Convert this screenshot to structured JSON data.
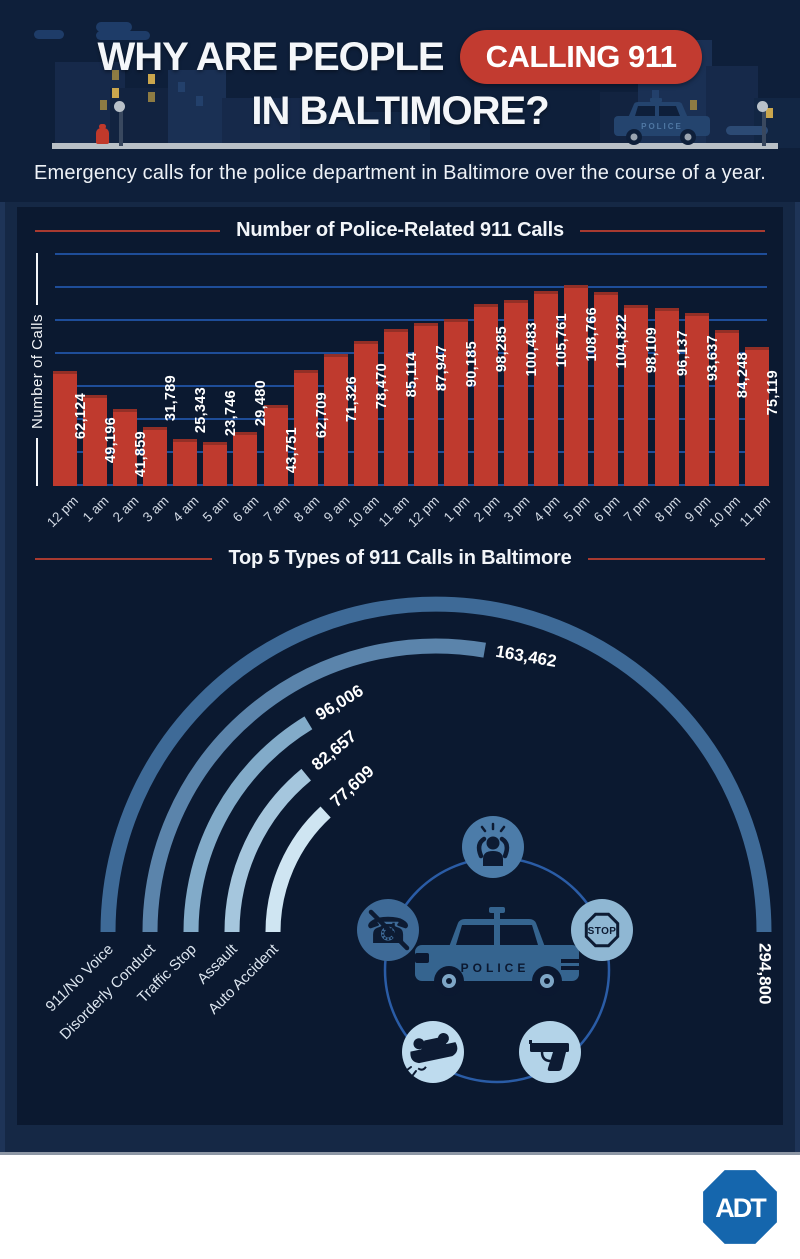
{
  "header": {
    "title_line1": "WHY ARE PEOPLE",
    "badge": "CALLING 911",
    "title_line2": "IN BALTIMORE?",
    "subtitle": "Emergency calls for the police department in Baltimore over the course of a year.",
    "police_car_text": "POLICE"
  },
  "colors": {
    "background_navy": "#0e1f3a",
    "frame_navy": "#152845",
    "panel_navy": "#0b1930",
    "accent_red": "#c23b30",
    "bar_red": "#bf3a2e",
    "gridline_blue": "#1e4d99",
    "title_rule_red": "#a83a30",
    "adt_blue": "#1566ad"
  },
  "chart_data": [
    {
      "type": "bar",
      "title": "Number of Police-Related 911 Calls",
      "ylabel": "Number of Calls",
      "categories": [
        "12 pm",
        "1 am",
        "2 am",
        "3 am",
        "4 am",
        "5 am",
        "6 am",
        "7 am",
        "8 am",
        "9 am",
        "10 am",
        "11 am",
        "12 pm",
        "1 pm",
        "2 pm",
        "3 pm",
        "4 pm",
        "5 pm",
        "6 pm",
        "7 pm",
        "8 pm",
        "9 pm",
        "10 pm",
        "11 pm"
      ],
      "values": [
        62124,
        49196,
        41859,
        31789,
        25343,
        23746,
        29480,
        43751,
        62709,
        71326,
        78470,
        85114,
        87947,
        90185,
        98285,
        100483,
        105761,
        108766,
        104822,
        98109,
        96137,
        93637,
        84248,
        75119
      ],
      "value_labels": [
        "62,124",
        "49,196",
        "41,859",
        "31,789",
        "25,343",
        "23,746",
        "29,480",
        "43,751",
        "62,709",
        "71,326",
        "78,470",
        "85,114",
        "87,947",
        "90,185",
        "98,285",
        "100,483",
        "105,761",
        "108,766",
        "104,822",
        "98,109",
        "96,137",
        "93,637",
        "84,248",
        "75,119"
      ],
      "bar_color": "#bf3a2e",
      "grid": true
    },
    {
      "type": "radial-bar",
      "title": "Top 5 Types of 911 Calls in Baltimore",
      "categories": [
        "911/No Voice",
        "Disorderly Conduct",
        "Traffic Stop",
        "Assault",
        "Auto Accident"
      ],
      "values": [
        294800,
        163462,
        96006,
        82657,
        77609
      ],
      "value_labels": [
        "294,800",
        "163,462",
        "96,006",
        "82,657",
        "77,609"
      ],
      "colors": [
        "#3e6a97",
        "#5b84ab",
        "#82abc9",
        "#a5c6dd",
        "#cfe5f2"
      ],
      "max_sweep_deg": 180,
      "icons": [
        "person-distress",
        "phone-slash",
        "stop-sign",
        "overturned-car",
        "gun"
      ],
      "stop_sign_text": "STOP",
      "car_label": "POLICE"
    }
  ],
  "footer": {
    "logo_text": "ADT"
  }
}
